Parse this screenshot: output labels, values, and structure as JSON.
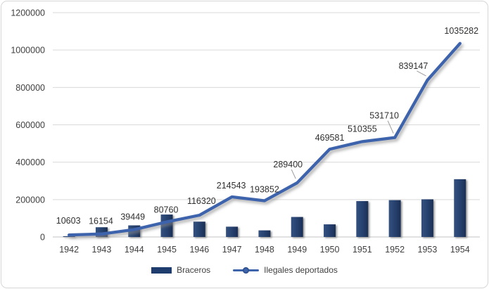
{
  "chart_data": {
    "type": "combo",
    "title": "",
    "xlabel": "",
    "ylabel": "",
    "categories": [
      "1942",
      "1943",
      "1944",
      "1945",
      "1946",
      "1947",
      "1948",
      "1949",
      "1950",
      "1951",
      "1952",
      "1953",
      "1954"
    ],
    "series": [
      {
        "name": "Braceros",
        "type": "bar",
        "color": "#1f3c6e",
        "data_labels_shown": false,
        "values_estimated": true,
        "values": [
          4200,
          52000,
          62000,
          120000,
          82000,
          55000,
          35300,
          107000,
          67500,
          192000,
          197000,
          201400,
          309000
        ]
      },
      {
        "name": "Ilegales deportados",
        "type": "line",
        "color": "#3e64ac",
        "data_labels_shown": true,
        "values_estimated": false,
        "values": [
          10603,
          16154,
          39449,
          80760,
          116320,
          214543,
          193852,
          289400,
          469581,
          510355,
          531710,
          839147,
          1035282
        ]
      }
    ],
    "ylim": [
      0,
      1200000
    ],
    "yticks": [
      0,
      200000,
      400000,
      600000,
      800000,
      1000000,
      1200000
    ],
    "ytick_labels": [
      "0",
      "200000",
      "400000",
      "600000",
      "800000",
      "1000000",
      "1200000"
    ],
    "grid": true,
    "legend_position": "bottom"
  },
  "style": {
    "background": "#ffffff",
    "frame_border": "#d6d6d6",
    "gridline": "#d9d9d9",
    "axis_line": "#c3c3c3",
    "tick_label_color": "#3f3f3f",
    "data_label_color": "#303030",
    "bar_fill_light": "#33517f",
    "bar_fill_mid": "#26406d",
    "bar_fill_dark": "#1b2f55",
    "line_stroke": "#3e64ac",
    "leader_line": "#9b9b9b",
    "shadow_color": "#8a8a8a"
  }
}
